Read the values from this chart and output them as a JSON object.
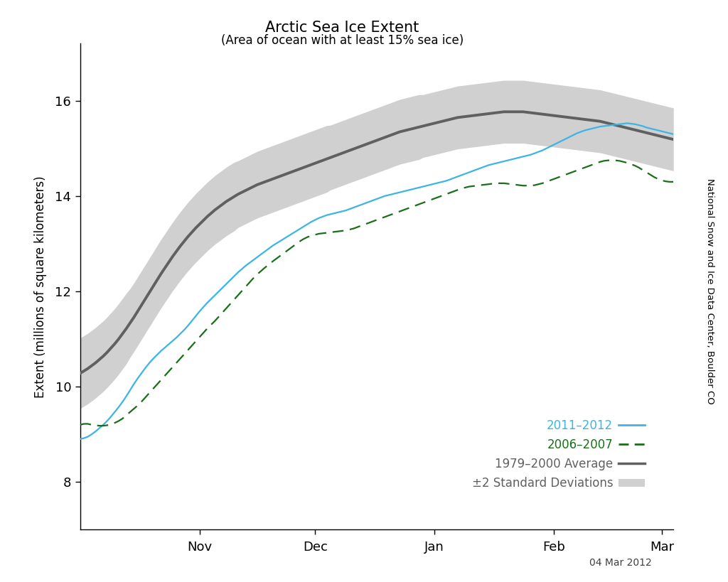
{
  "title_line1": "Arctic Sea Ice Extent",
  "title_line2": "(Area of ocean with at least 15% sea ice)",
  "ylabel": "Extent (millions of square kilometers)",
  "side_label": "National Snow and Ice Data Center, Boulder CO",
  "date_label": "04 Mar 2012",
  "ylim": [
    7.0,
    17.2
  ],
  "yticks": [
    8,
    10,
    12,
    14,
    16
  ],
  "xtick_labels": [
    "Nov",
    "Dec",
    "Jan",
    "Feb",
    "Mar"
  ],
  "bg_color": "#ffffff",
  "avg_color": "#606060",
  "shade_color": "#d0d0d0",
  "line_2011_color": "#3cb4e6",
  "line_2006_color": "#1a6e1a",
  "avg_linewidth": 2.8,
  "year_linewidth": 1.6,
  "num_days": 155,
  "avg_data": [
    10.28,
    10.33,
    10.38,
    10.44,
    10.5,
    10.57,
    10.64,
    10.72,
    10.81,
    10.9,
    11.0,
    11.11,
    11.22,
    11.34,
    11.46,
    11.59,
    11.72,
    11.85,
    11.98,
    12.11,
    12.24,
    12.37,
    12.49,
    12.61,
    12.73,
    12.84,
    12.95,
    13.05,
    13.15,
    13.24,
    13.33,
    13.41,
    13.49,
    13.57,
    13.64,
    13.71,
    13.77,
    13.83,
    13.89,
    13.94,
    13.99,
    14.04,
    14.08,
    14.12,
    14.16,
    14.2,
    14.24,
    14.27,
    14.3,
    14.33,
    14.36,
    14.39,
    14.42,
    14.45,
    14.48,
    14.51,
    14.54,
    14.57,
    14.6,
    14.63,
    14.66,
    14.69,
    14.72,
    14.75,
    14.78,
    14.81,
    14.84,
    14.87,
    14.9,
    14.93,
    14.96,
    14.99,
    15.02,
    15.05,
    15.08,
    15.11,
    15.14,
    15.17,
    15.2,
    15.23,
    15.26,
    15.29,
    15.32,
    15.35,
    15.37,
    15.39,
    15.41,
    15.43,
    15.45,
    15.47,
    15.49,
    15.51,
    15.53,
    15.55,
    15.57,
    15.59,
    15.61,
    15.63,
    15.65,
    15.66,
    15.67,
    15.68,
    15.69,
    15.7,
    15.71,
    15.72,
    15.73,
    15.74,
    15.75,
    15.76,
    15.77,
    15.77,
    15.77,
    15.77,
    15.77,
    15.77,
    15.76,
    15.75,
    15.74,
    15.73,
    15.72,
    15.71,
    15.7,
    15.69,
    15.68,
    15.67,
    15.66,
    15.65,
    15.64,
    15.63,
    15.62,
    15.61,
    15.6,
    15.59,
    15.58,
    15.57,
    15.55,
    15.53,
    15.51,
    15.49,
    15.47,
    15.45,
    15.43,
    15.41,
    15.39,
    15.37,
    15.35,
    15.33,
    15.31,
    15.29,
    15.27,
    15.25,
    15.23,
    15.21,
    15.19
  ],
  "std_data": [
    0.37,
    0.37,
    0.37,
    0.37,
    0.37,
    0.37,
    0.37,
    0.37,
    0.37,
    0.37,
    0.37,
    0.37,
    0.37,
    0.36,
    0.36,
    0.36,
    0.36,
    0.36,
    0.36,
    0.36,
    0.36,
    0.36,
    0.36,
    0.36,
    0.36,
    0.36,
    0.36,
    0.36,
    0.36,
    0.36,
    0.36,
    0.36,
    0.36,
    0.36,
    0.36,
    0.36,
    0.36,
    0.36,
    0.36,
    0.36,
    0.36,
    0.35,
    0.35,
    0.35,
    0.35,
    0.35,
    0.35,
    0.35,
    0.35,
    0.35,
    0.35,
    0.35,
    0.35,
    0.35,
    0.35,
    0.35,
    0.35,
    0.35,
    0.35,
    0.35,
    0.35,
    0.35,
    0.35,
    0.35,
    0.35,
    0.34,
    0.34,
    0.34,
    0.34,
    0.34,
    0.34,
    0.34,
    0.34,
    0.34,
    0.34,
    0.34,
    0.34,
    0.34,
    0.34,
    0.34,
    0.34,
    0.34,
    0.34,
    0.34,
    0.34,
    0.34,
    0.34,
    0.34,
    0.34,
    0.33,
    0.33,
    0.33,
    0.33,
    0.33,
    0.33,
    0.33,
    0.33,
    0.33,
    0.33,
    0.33,
    0.33,
    0.33,
    0.33,
    0.33,
    0.33,
    0.33,
    0.33,
    0.33,
    0.33,
    0.33,
    0.33,
    0.33,
    0.33,
    0.33,
    0.33,
    0.33,
    0.33,
    0.33,
    0.33,
    0.33,
    0.33,
    0.33,
    0.33,
    0.33,
    0.33,
    0.33,
    0.33,
    0.33,
    0.33,
    0.33,
    0.33,
    0.33,
    0.33,
    0.33,
    0.33,
    0.33,
    0.33,
    0.33,
    0.33,
    0.33,
    0.33,
    0.33,
    0.33,
    0.33,
    0.33,
    0.33,
    0.33,
    0.33,
    0.33,
    0.33,
    0.33,
    0.33,
    0.33,
    0.33,
    0.33
  ],
  "line_2011": [
    8.9,
    8.92,
    8.95,
    9.0,
    9.06,
    9.13,
    9.2,
    9.28,
    9.37,
    9.47,
    9.57,
    9.68,
    9.8,
    9.93,
    10.06,
    10.18,
    10.29,
    10.4,
    10.5,
    10.59,
    10.67,
    10.75,
    10.82,
    10.89,
    10.96,
    11.03,
    11.11,
    11.19,
    11.28,
    11.38,
    11.48,
    11.58,
    11.67,
    11.76,
    11.84,
    11.92,
    12.0,
    12.08,
    12.16,
    12.24,
    12.32,
    12.4,
    12.47,
    12.54,
    12.6,
    12.66,
    12.72,
    12.78,
    12.84,
    12.9,
    12.96,
    13.01,
    13.06,
    13.11,
    13.16,
    13.21,
    13.26,
    13.31,
    13.36,
    13.41,
    13.46,
    13.5,
    13.54,
    13.57,
    13.6,
    13.62,
    13.64,
    13.66,
    13.68,
    13.7,
    13.73,
    13.76,
    13.79,
    13.82,
    13.85,
    13.88,
    13.91,
    13.94,
    13.97,
    14.0,
    14.02,
    14.04,
    14.06,
    14.08,
    14.1,
    14.12,
    14.14,
    14.16,
    14.18,
    14.2,
    14.22,
    14.24,
    14.26,
    14.28,
    14.3,
    14.32,
    14.35,
    14.38,
    14.41,
    14.44,
    14.47,
    14.5,
    14.53,
    14.56,
    14.59,
    14.62,
    14.65,
    14.67,
    14.69,
    14.71,
    14.73,
    14.75,
    14.77,
    14.79,
    14.81,
    14.83,
    14.85,
    14.87,
    14.9,
    14.93,
    14.96,
    15.0,
    15.04,
    15.08,
    15.12,
    15.16,
    15.2,
    15.24,
    15.28,
    15.32,
    15.35,
    15.38,
    15.4,
    15.42,
    15.44,
    15.46,
    15.47,
    15.48,
    15.49,
    15.5,
    15.51,
    15.52,
    15.53,
    15.52,
    15.51,
    15.49,
    15.47,
    15.44,
    15.42,
    15.4,
    15.38,
    15.36,
    15.34,
    15.32,
    15.3
  ],
  "line_2006": [
    9.2,
    9.22,
    9.22,
    9.2,
    9.19,
    9.18,
    9.18,
    9.19,
    9.21,
    9.24,
    9.28,
    9.33,
    9.4,
    9.47,
    9.54,
    9.61,
    9.69,
    9.78,
    9.87,
    9.96,
    10.05,
    10.14,
    10.23,
    10.32,
    10.41,
    10.5,
    10.59,
    10.68,
    10.77,
    10.86,
    10.95,
    11.04,
    11.13,
    11.22,
    11.3,
    11.38,
    11.47,
    11.56,
    11.65,
    11.74,
    11.83,
    11.92,
    12.01,
    12.1,
    12.19,
    12.28,
    12.36,
    12.43,
    12.5,
    12.57,
    12.63,
    12.69,
    12.75,
    12.81,
    12.87,
    12.93,
    12.99,
    13.05,
    13.1,
    13.14,
    13.17,
    13.19,
    13.21,
    13.22,
    13.23,
    13.24,
    13.25,
    13.26,
    13.27,
    13.28,
    13.3,
    13.32,
    13.35,
    13.38,
    13.41,
    13.44,
    13.47,
    13.5,
    13.53,
    13.56,
    13.59,
    13.62,
    13.65,
    13.68,
    13.71,
    13.74,
    13.77,
    13.8,
    13.83,
    13.86,
    13.89,
    13.92,
    13.95,
    13.98,
    14.01,
    14.04,
    14.07,
    14.1,
    14.13,
    14.16,
    14.18,
    14.2,
    14.21,
    14.22,
    14.23,
    14.24,
    14.25,
    14.26,
    14.27,
    14.27,
    14.27,
    14.26,
    14.25,
    14.24,
    14.23,
    14.22,
    14.22,
    14.22,
    14.23,
    14.25,
    14.27,
    14.3,
    14.33,
    14.36,
    14.39,
    14.42,
    14.45,
    14.48,
    14.51,
    14.54,
    14.57,
    14.6,
    14.63,
    14.66,
    14.69,
    14.72,
    14.74,
    14.75,
    14.75,
    14.75,
    14.74,
    14.72,
    14.7,
    14.67,
    14.64,
    14.6,
    14.55,
    14.5,
    14.45,
    14.4,
    14.36,
    14.33,
    14.31,
    14.3,
    14.3
  ]
}
